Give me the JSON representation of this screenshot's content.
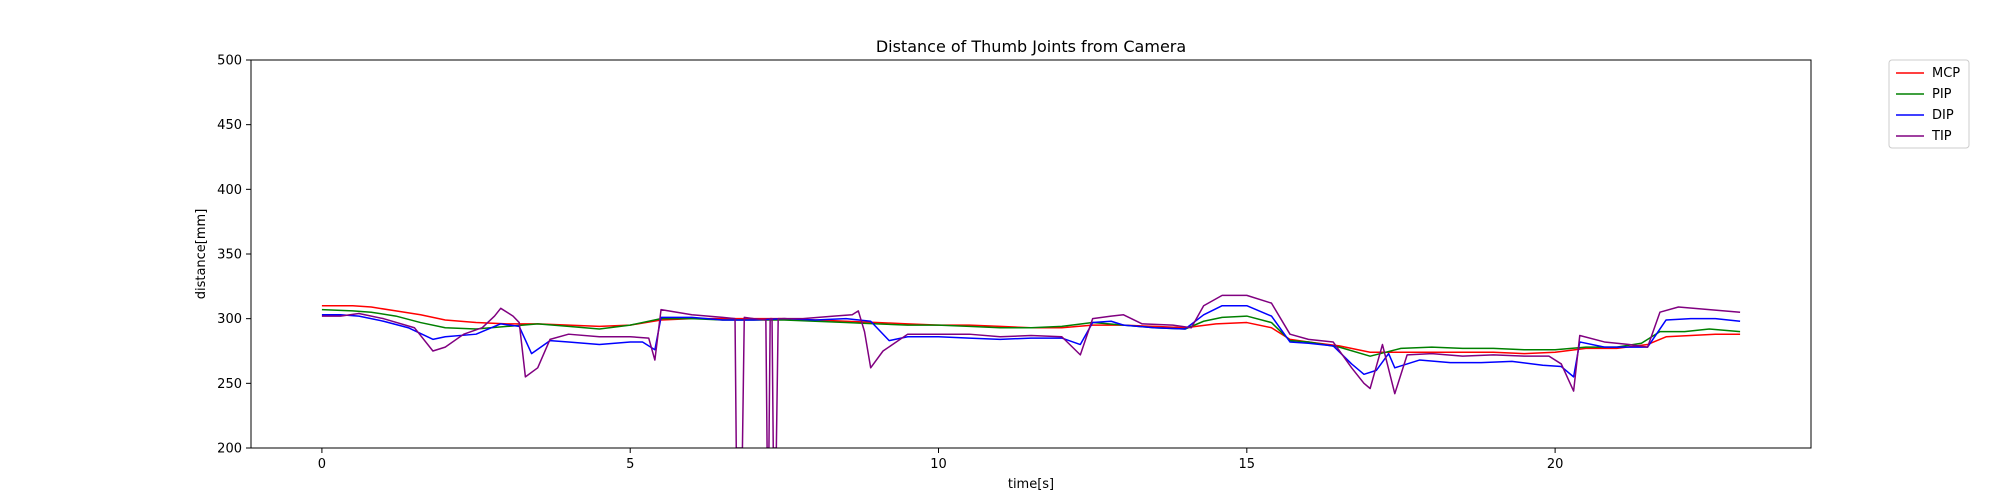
{
  "chart_data": {
    "type": "line",
    "title": "Distance of Thumb Joints from Camera",
    "xlabel": "time[s]",
    "ylabel": "distance[mm]",
    "xlim": [
      -1.15,
      24.15
    ],
    "ylim": [
      200,
      500
    ],
    "xticks": [
      0,
      5,
      10,
      15,
      20
    ],
    "yticks": [
      200,
      250,
      300,
      350,
      400,
      450,
      500
    ],
    "grid": false,
    "legend": {
      "placement": "outside-top-right"
    },
    "series": [
      {
        "name": "MCP",
        "color": "#ff0000",
        "points": [
          [
            0,
            310
          ],
          [
            0.5,
            310
          ],
          [
            0.8,
            309
          ],
          [
            1.2,
            306
          ],
          [
            1.6,
            303
          ],
          [
            2.0,
            299
          ],
          [
            2.5,
            297
          ],
          [
            3.0,
            296
          ],
          [
            3.5,
            296
          ],
          [
            4.0,
            295
          ],
          [
            4.5,
            294
          ],
          [
            5.0,
            295
          ],
          [
            5.5,
            299
          ],
          [
            6.0,
            300
          ],
          [
            6.5,
            300
          ],
          [
            7.0,
            300
          ],
          [
            7.5,
            300
          ],
          [
            8.0,
            299
          ],
          [
            8.5,
            298
          ],
          [
            9.0,
            297
          ],
          [
            9.5,
            296
          ],
          [
            10.0,
            295
          ],
          [
            10.5,
            295
          ],
          [
            11.0,
            294
          ],
          [
            11.5,
            293
          ],
          [
            12.0,
            293
          ],
          [
            12.5,
            295
          ],
          [
            13.0,
            295
          ],
          [
            13.5,
            294
          ],
          [
            14.0,
            293
          ],
          [
            14.5,
            296
          ],
          [
            15.0,
            297
          ],
          [
            15.4,
            293
          ],
          [
            15.7,
            284
          ],
          [
            16.0,
            282
          ],
          [
            16.5,
            279
          ],
          [
            17.0,
            274
          ],
          [
            17.5,
            274
          ],
          [
            18.0,
            274
          ],
          [
            18.5,
            274
          ],
          [
            19.0,
            274
          ],
          [
            19.5,
            273
          ],
          [
            20.0,
            274
          ],
          [
            20.5,
            277
          ],
          [
            21.0,
            277
          ],
          [
            21.5,
            280
          ],
          [
            21.8,
            286
          ],
          [
            22.2,
            287
          ],
          [
            22.6,
            288
          ],
          [
            23.0,
            288
          ]
        ]
      },
      {
        "name": "PIP",
        "color": "#008000",
        "points": [
          [
            0,
            307
          ],
          [
            0.5,
            306
          ],
          [
            0.8,
            305
          ],
          [
            1.2,
            302
          ],
          [
            1.6,
            297
          ],
          [
            2.0,
            293
          ],
          [
            2.5,
            292
          ],
          [
            3.0,
            294
          ],
          [
            3.5,
            296
          ],
          [
            4.0,
            294
          ],
          [
            4.5,
            292
          ],
          [
            5.0,
            295
          ],
          [
            5.5,
            300
          ],
          [
            6.0,
            300
          ],
          [
            6.5,
            299
          ],
          [
            7.0,
            299
          ],
          [
            7.5,
            299
          ],
          [
            8.0,
            298
          ],
          [
            8.5,
            297
          ],
          [
            9.0,
            296
          ],
          [
            9.5,
            295
          ],
          [
            10.0,
            295
          ],
          [
            10.5,
            294
          ],
          [
            11.0,
            293
          ],
          [
            11.5,
            293
          ],
          [
            12.0,
            294
          ],
          [
            12.5,
            297
          ],
          [
            13.0,
            295
          ],
          [
            13.5,
            293
          ],
          [
            14.0,
            292
          ],
          [
            14.3,
            298
          ],
          [
            14.6,
            301
          ],
          [
            15.0,
            302
          ],
          [
            15.4,
            297
          ],
          [
            15.7,
            283
          ],
          [
            16.0,
            282
          ],
          [
            16.5,
            278
          ],
          [
            17.0,
            271
          ],
          [
            17.5,
            277
          ],
          [
            18.0,
            278
          ],
          [
            18.5,
            277
          ],
          [
            19.0,
            277
          ],
          [
            19.5,
            276
          ],
          [
            20.0,
            276
          ],
          [
            20.5,
            278
          ],
          [
            21.0,
            278
          ],
          [
            21.4,
            281
          ],
          [
            21.7,
            290
          ],
          [
            22.1,
            290
          ],
          [
            22.5,
            292
          ],
          [
            23.0,
            290
          ]
        ]
      },
      {
        "name": "DIP",
        "color": "#0000ff",
        "points": [
          [
            0,
            303
          ],
          [
            0.3,
            303
          ],
          [
            0.6,
            302
          ],
          [
            1.0,
            298
          ],
          [
            1.4,
            293
          ],
          [
            1.8,
            284
          ],
          [
            2.0,
            286
          ],
          [
            2.5,
            288
          ],
          [
            2.9,
            296
          ],
          [
            3.2,
            294
          ],
          [
            3.4,
            273
          ],
          [
            3.7,
            283
          ],
          [
            4.0,
            282
          ],
          [
            4.5,
            280
          ],
          [
            5.0,
            282
          ],
          [
            5.2,
            282
          ],
          [
            5.4,
            276
          ],
          [
            5.5,
            301
          ],
          [
            6.0,
            301
          ],
          [
            6.5,
            299
          ],
          [
            7.0,
            299
          ],
          [
            7.5,
            300
          ],
          [
            8.0,
            299
          ],
          [
            8.5,
            300
          ],
          [
            8.9,
            298
          ],
          [
            9.2,
            283
          ],
          [
            9.5,
            286
          ],
          [
            10.0,
            286
          ],
          [
            10.5,
            285
          ],
          [
            11.0,
            284
          ],
          [
            11.5,
            285
          ],
          [
            12.0,
            285
          ],
          [
            12.3,
            280
          ],
          [
            12.5,
            297
          ],
          [
            12.8,
            298
          ],
          [
            13.0,
            295
          ],
          [
            13.5,
            293
          ],
          [
            14.0,
            292
          ],
          [
            14.3,
            303
          ],
          [
            14.6,
            310
          ],
          [
            15.0,
            310
          ],
          [
            15.4,
            302
          ],
          [
            15.7,
            282
          ],
          [
            16.0,
            281
          ],
          [
            16.4,
            279
          ],
          [
            16.7,
            265
          ],
          [
            16.9,
            257
          ],
          [
            17.1,
            260
          ],
          [
            17.3,
            273
          ],
          [
            17.4,
            262
          ],
          [
            17.8,
            268
          ],
          [
            18.3,
            266
          ],
          [
            18.8,
            266
          ],
          [
            19.3,
            267
          ],
          [
            19.8,
            264
          ],
          [
            20.1,
            263
          ],
          [
            20.3,
            255
          ],
          [
            20.4,
            282
          ],
          [
            20.8,
            278
          ],
          [
            21.2,
            278
          ],
          [
            21.5,
            278
          ],
          [
            21.8,
            299
          ],
          [
            22.2,
            300
          ],
          [
            22.6,
            300
          ],
          [
            23.0,
            298
          ]
        ]
      },
      {
        "name": "TIP",
        "color": "#800080",
        "points": [
          [
            0,
            302
          ],
          [
            0.3,
            302
          ],
          [
            0.6,
            304
          ],
          [
            1.0,
            300
          ],
          [
            1.5,
            293
          ],
          [
            1.8,
            275
          ],
          [
            2.0,
            278
          ],
          [
            2.3,
            288
          ],
          [
            2.6,
            293
          ],
          [
            2.8,
            302
          ],
          [
            2.9,
            308
          ],
          [
            3.1,
            302
          ],
          [
            3.2,
            297
          ],
          [
            3.3,
            255
          ],
          [
            3.5,
            262
          ],
          [
            3.7,
            284
          ],
          [
            4.0,
            288
          ],
          [
            4.5,
            286
          ],
          [
            5.0,
            286
          ],
          [
            5.3,
            285
          ],
          [
            5.4,
            268
          ],
          [
            5.5,
            307
          ],
          [
            6.0,
            303
          ],
          [
            6.5,
            301
          ],
          [
            6.7,
            300
          ],
          [
            6.72,
            200
          ],
          [
            6.82,
            200
          ],
          [
            6.85,
            301
          ],
          [
            7.0,
            300
          ],
          [
            7.2,
            299
          ],
          [
            7.22,
            200
          ],
          [
            7.25,
            200
          ],
          [
            7.27,
            300
          ],
          [
            7.3,
            300
          ],
          [
            7.32,
            200
          ],
          [
            7.37,
            200
          ],
          [
            7.4,
            300
          ],
          [
            7.8,
            300
          ],
          [
            8.3,
            302
          ],
          [
            8.6,
            303
          ],
          [
            8.7,
            306
          ],
          [
            8.8,
            290
          ],
          [
            8.9,
            262
          ],
          [
            9.1,
            275
          ],
          [
            9.5,
            288
          ],
          [
            10.0,
            288
          ],
          [
            10.5,
            288
          ],
          [
            11.0,
            286
          ],
          [
            11.5,
            287
          ],
          [
            12.0,
            286
          ],
          [
            12.3,
            272
          ],
          [
            12.5,
            300
          ],
          [
            12.8,
            302
          ],
          [
            13.0,
            303
          ],
          [
            13.3,
            296
          ],
          [
            13.8,
            295
          ],
          [
            14.1,
            293
          ],
          [
            14.3,
            310
          ],
          [
            14.6,
            318
          ],
          [
            15.0,
            318
          ],
          [
            15.4,
            312
          ],
          [
            15.7,
            288
          ],
          [
            16.0,
            284
          ],
          [
            16.4,
            282
          ],
          [
            16.7,
            262
          ],
          [
            16.9,
            250
          ],
          [
            17.0,
            246
          ],
          [
            17.2,
            280
          ],
          [
            17.4,
            242
          ],
          [
            17.6,
            272
          ],
          [
            18.0,
            273
          ],
          [
            18.5,
            271
          ],
          [
            19.0,
            272
          ],
          [
            19.5,
            271
          ],
          [
            19.9,
            271
          ],
          [
            20.1,
            265
          ],
          [
            20.3,
            244
          ],
          [
            20.4,
            287
          ],
          [
            20.8,
            282
          ],
          [
            21.2,
            280
          ],
          [
            21.5,
            278
          ],
          [
            21.7,
            305
          ],
          [
            22.0,
            309
          ],
          [
            22.5,
            307
          ],
          [
            23.0,
            305
          ]
        ]
      }
    ]
  }
}
